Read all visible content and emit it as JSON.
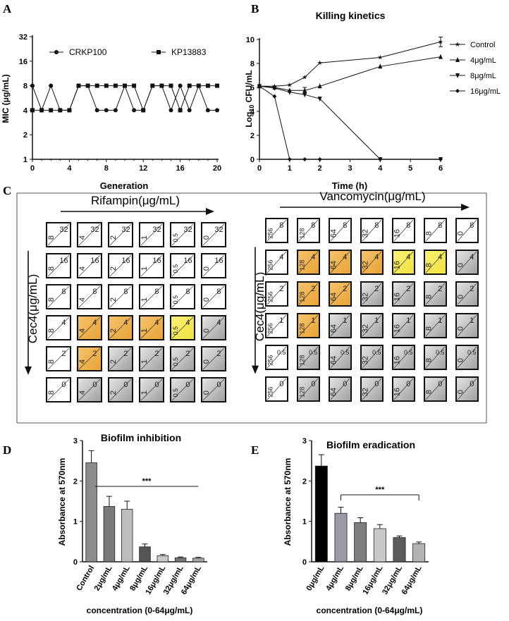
{
  "colors": {
    "orange": "#E9A233",
    "yellow": "#F1E23B",
    "grey": "#BDBDBD",
    "dark": "#262626"
  },
  "chart_data": [
    {
      "panel": "A",
      "type": "line",
      "title": "",
      "xlabel": "Generation",
      "ylabel": "MIC (μg/mL)",
      "xlim": [
        0,
        20
      ],
      "xticks": [
        "0",
        "4",
        "8",
        "12",
        "16",
        "20"
      ],
      "yscale": "log2",
      "yticks": [
        "1",
        "2",
        "4",
        "8",
        "16",
        "32"
      ],
      "series": [
        {
          "name": "CRKP100",
          "marker": "circle",
          "x": [
            0,
            1,
            2,
            3,
            4,
            5,
            6,
            7,
            8,
            9,
            10,
            11,
            12,
            13,
            14,
            15,
            16,
            17,
            18,
            19,
            20
          ],
          "y": [
            8,
            4,
            8,
            4,
            4,
            8,
            8,
            4,
            4,
            4,
            8,
            4,
            4,
            8,
            8,
            4,
            8,
            4,
            8,
            4,
            4
          ]
        },
        {
          "name": "KP13883",
          "marker": "square",
          "x": [
            0,
            1,
            2,
            3,
            4,
            5,
            6,
            7,
            8,
            9,
            10,
            11,
            12,
            13,
            14,
            15,
            16,
            17,
            18,
            19,
            20
          ],
          "y": [
            4,
            4,
            4,
            4,
            4,
            8,
            8,
            8,
            8,
            8,
            8,
            8,
            4,
            8,
            8,
            8,
            4,
            8,
            8,
            8,
            8
          ]
        }
      ]
    },
    {
      "panel": "B",
      "type": "line",
      "title": "Killing kinetics",
      "xlabel": "Time (h)",
      "ylabel": "Log₁₀ CFU/mL",
      "xlim": [
        0,
        6
      ],
      "ylim": [
        0,
        10
      ],
      "xticks": [
        "0",
        "1",
        "2",
        "3",
        "4",
        "5",
        "6"
      ],
      "yticks": [
        "0",
        "2",
        "4",
        "6",
        "8",
        "10"
      ],
      "series": [
        {
          "name": "Control",
          "marker": "star",
          "x": [
            0,
            0.5,
            1,
            1.5,
            2,
            4,
            6
          ],
          "y": [
            6.1,
            6.1,
            6.2,
            6.85,
            8.05,
            8.5,
            9.8
          ],
          "err": [
            0,
            0,
            0,
            0,
            0,
            0,
            0.4
          ]
        },
        {
          "name": "4μg/mL",
          "marker": "triangle-up",
          "x": [
            0,
            0.5,
            1,
            1.5,
            2,
            4,
            6
          ],
          "y": [
            6.1,
            6.0,
            5.75,
            5.75,
            6.1,
            7.75,
            8.55
          ],
          "err": [
            0,
            0,
            0,
            0.25,
            0,
            0,
            0
          ]
        },
        {
          "name": "8μg/mL",
          "marker": "triangle-down",
          "x": [
            0,
            0.5,
            1,
            1.5,
            2,
            4,
            6
          ],
          "y": [
            6.1,
            5.95,
            5.6,
            5.4,
            5.05,
            0,
            0
          ],
          "err": [
            0,
            0,
            0,
            0,
            0,
            0,
            0
          ]
        },
        {
          "name": "16μg/mL",
          "marker": "diamond",
          "x": [
            0,
            0.5,
            1,
            1.5,
            2,
            4,
            6
          ],
          "y": [
            6.1,
            5.25,
            0,
            0,
            0,
            0,
            0
          ],
          "err": [
            0,
            0,
            0,
            0,
            0,
            0,
            0
          ]
        }
      ]
    },
    {
      "panel": "C",
      "type": "table",
      "subtitle": "checkerboard",
      "left": {
        "top_label": "Rifampin(μg/mL)",
        "side_label": "Cec4(μg/mL)",
        "cols": [
          "8",
          "4",
          "2",
          "1",
          "0.5",
          "0"
        ],
        "rows": [
          "32",
          "16",
          "8",
          "4",
          "2",
          "0"
        ],
        "cells": [
          [
            "w",
            "w",
            "w",
            "w",
            "w",
            "w"
          ],
          [
            "w",
            "w",
            "w",
            "w",
            "w",
            "w"
          ],
          [
            "w",
            "w",
            "w",
            "w",
            "w",
            "w"
          ],
          [
            "w",
            "o",
            "o",
            "o",
            "y",
            "g"
          ],
          [
            "w",
            "o",
            "g",
            "g",
            "g",
            "g"
          ],
          [
            "w",
            "g",
            "g",
            "g",
            "g",
            "g"
          ]
        ]
      },
      "right": {
        "top_label": "Vancomycin(μg/mL)",
        "side_label": "Cec4(μg/mL)",
        "cols": [
          "256",
          "128",
          "64",
          "32",
          "16",
          "8",
          "0"
        ],
        "rows": [
          "8",
          "4",
          "2",
          "1",
          "0.5",
          "0"
        ],
        "cells": [
          [
            "w",
            "w",
            "w",
            "w",
            "w",
            "w",
            "w"
          ],
          [
            "w",
            "o",
            "o",
            "o",
            "y",
            "y",
            "g"
          ],
          [
            "w",
            "o",
            "o",
            "g",
            "g",
            "g",
            "g"
          ],
          [
            "w",
            "o",
            "g",
            "g",
            "g",
            "g",
            "g"
          ],
          [
            "w",
            "g",
            "g",
            "g",
            "g",
            "g",
            "g"
          ],
          [
            "w",
            "g",
            "g",
            "g",
            "g",
            "g",
            "g"
          ]
        ]
      }
    },
    {
      "panel": "D",
      "type": "bar",
      "title": "Biofilm inhibition",
      "xlabel": "concentration (0-64μg/mL)",
      "ylabel": "Absorbance at 570nm",
      "ylim": [
        0,
        3
      ],
      "yticks": [
        "0",
        "1",
        "2",
        "3"
      ],
      "categories": [
        "Control",
        "2μg/mL",
        "4μg/mL",
        "8μg/mL",
        "16μg/mL",
        "32μg/mL",
        "64μg/mL"
      ],
      "values": [
        2.45,
        1.37,
        1.3,
        0.37,
        0.15,
        0.1,
        0.09
      ],
      "errors": [
        0.3,
        0.25,
        0.2,
        0.07,
        0.03,
        0.02,
        0.02
      ],
      "fills": [
        "#8c8c8c",
        "#7a7a7a",
        "#bdbdbd",
        "#555555",
        "#c8c8c8",
        "#777777",
        "#a5a5a5"
      ],
      "annotation": "***"
    },
    {
      "panel": "E",
      "type": "bar",
      "title": "Biofilm eradication",
      "xlabel": "concentration (0-64μg/mL)",
      "ylabel": "Absorbance at 570nm",
      "ylim": [
        0,
        3
      ],
      "yticks": [
        "0",
        "1",
        "2",
        "3"
      ],
      "categories": [
        "0μg/mL",
        "4μg/mL",
        "8μg/mL",
        "16μg/mL",
        "32μg/mL",
        "64μg/mL"
      ],
      "values": [
        2.37,
        1.2,
        0.97,
        0.82,
        0.6,
        0.45
      ],
      "errors": [
        0.28,
        0.15,
        0.12,
        0.1,
        0.04,
        0.04
      ],
      "fills": [
        "#000000",
        "#9a9aa4",
        "#7d7d7d",
        "#c8c8c8",
        "#5c5c5c",
        "#b3b3b3"
      ],
      "annotation": "***"
    }
  ],
  "panel_letters": [
    "A",
    "B",
    "C",
    "D",
    "E"
  ]
}
